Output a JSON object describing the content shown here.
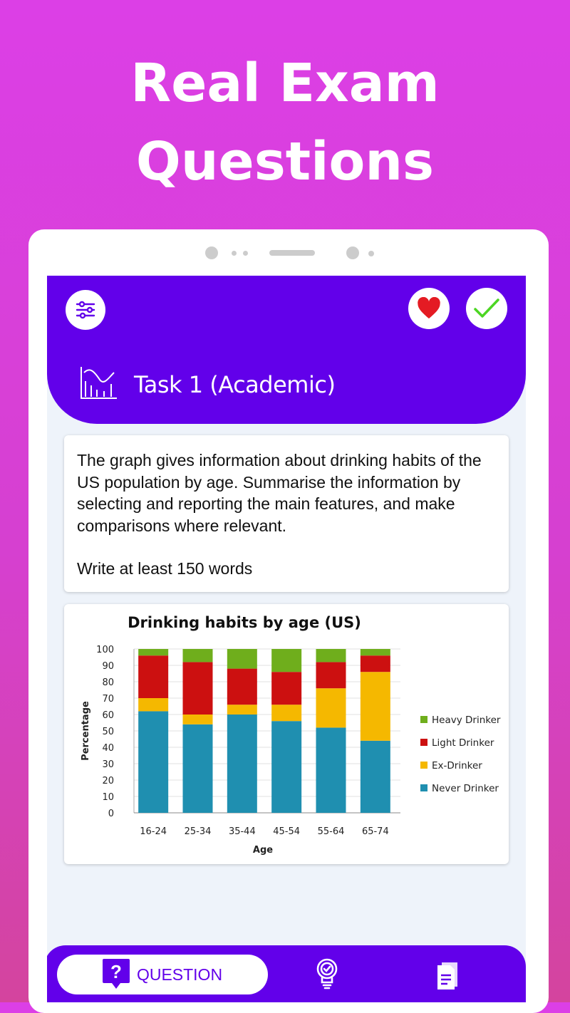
{
  "headline": {
    "line1": "Real Exam",
    "line2": "Questions"
  },
  "header": {
    "title": "Task 1 (Academic)",
    "icons": [
      "filter-sliders-icon",
      "heart-icon",
      "check-icon",
      "chart-icon"
    ],
    "colors": {
      "primary": "#6200ea",
      "heart": "#e41b23",
      "check": "#4cd623"
    }
  },
  "prompt": {
    "text": "The graph gives information about drinking habits of the US population by age. Summarise the information by selecting and reporting the main features, and make comparisons where relevant.",
    "instruction": "Write at least 150 words"
  },
  "chart_data": {
    "type": "bar",
    "stacked": true,
    "title": "Drinking habits by age (US)",
    "xlabel": "Age",
    "ylabel": "Percentage",
    "ylim": [
      0,
      100
    ],
    "yticks": [
      "0",
      "10",
      "20",
      "30",
      "40",
      "50",
      "60",
      "70",
      "80",
      "90",
      "100"
    ],
    "grid": true,
    "legend_position": "right",
    "categories": [
      "16-24",
      "25-34",
      "35-44",
      "45-54",
      "55-64",
      "65-74"
    ],
    "series": [
      {
        "name": "Never Drinker",
        "color": "#1f8fb0",
        "values": [
          62,
          54,
          60,
          56,
          52,
          44
        ]
      },
      {
        "name": "Ex-Drinker",
        "color": "#f5b800",
        "values": [
          8,
          6,
          6,
          10,
          24,
          42
        ]
      },
      {
        "name": "Light Drinker",
        "color": "#cc1010",
        "values": [
          26,
          32,
          22,
          20,
          16,
          10
        ]
      },
      {
        "name": "Heavy Drinker",
        "color": "#6fae1c",
        "values": [
          4,
          8,
          12,
          14,
          8,
          4
        ]
      }
    ],
    "legend_order": [
      "Heavy Drinker",
      "Light Drinker",
      "Ex-Drinker",
      "Never Drinker"
    ]
  },
  "nav": {
    "items": [
      {
        "label": "QUESTION",
        "icon": "question-icon",
        "active": true
      },
      {
        "label": "",
        "icon": "lightbulb-check-icon"
      },
      {
        "label": "",
        "icon": "documents-icon"
      }
    ]
  }
}
